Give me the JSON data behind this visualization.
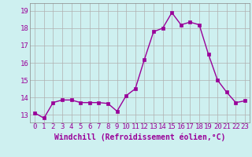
{
  "x": [
    0,
    1,
    2,
    3,
    4,
    5,
    6,
    7,
    8,
    9,
    10,
    11,
    12,
    13,
    14,
    15,
    16,
    17,
    18,
    19,
    20,
    21,
    22,
    23
  ],
  "y": [
    13.1,
    12.8,
    13.7,
    13.85,
    13.85,
    13.7,
    13.7,
    13.7,
    13.65,
    13.2,
    14.1,
    14.5,
    16.2,
    17.8,
    18.0,
    18.9,
    18.2,
    18.35,
    18.2,
    16.5,
    15.0,
    14.3,
    13.7,
    13.8
  ],
  "line_color": "#990099",
  "marker": "s",
  "markersize": 2.5,
  "linewidth": 1.0,
  "xlabel": "Windchill (Refroidissement éolien,°C)",
  "xlabel_fontsize": 7,
  "xtick_labels": [
    "0",
    "1",
    "2",
    "3",
    "4",
    "5",
    "6",
    "7",
    "8",
    "9",
    "10",
    "11",
    "12",
    "13",
    "14",
    "15",
    "16",
    "17",
    "18",
    "19",
    "20",
    "21",
    "22",
    "23"
  ],
  "ytick_values": [
    13,
    14,
    15,
    16,
    17,
    18,
    19
  ],
  "ylim": [
    12.55,
    19.45
  ],
  "xlim": [
    -0.5,
    23.5
  ],
  "grid_color": "#b0b0b0",
  "bg_color": "#cef0f0",
  "tick_color": "#990099",
  "tick_fontsize": 6.5,
  "xlabel_fontweight": "bold"
}
